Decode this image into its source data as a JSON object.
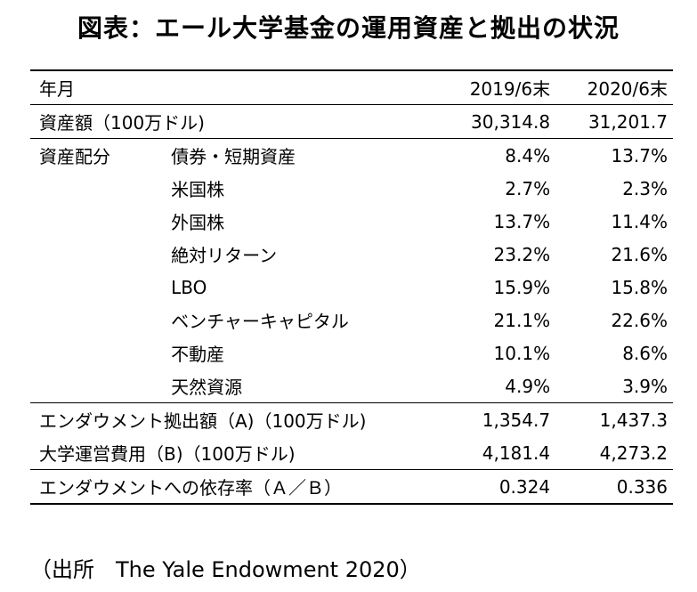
{
  "title": "図表：エール大学基金の運用資産と拠出の状況",
  "header": {
    "label": "年月",
    "col1": "2019/6末",
    "col2": "2020/6末"
  },
  "assets": {
    "label": "資産額（100万ドル)",
    "v1": "30,314.8",
    "v2": "31,201.7"
  },
  "allocation": {
    "label": "資産配分",
    "rows": [
      {
        "name": "債券・短期資産",
        "v1": "8.4%",
        "v2": "13.7%"
      },
      {
        "name": "米国株",
        "v1": "2.7%",
        "v2": "2.3%"
      },
      {
        "name": "外国株",
        "v1": "13.7%",
        "v2": "11.4%"
      },
      {
        "name": "絶対リターン",
        "v1": "23.2%",
        "v2": "21.6%"
      },
      {
        "name": "LBO",
        "v1": "15.9%",
        "v2": "15.8%"
      },
      {
        "name": "ベンチャーキャピタル",
        "v1": "21.1%",
        "v2": "22.6%"
      },
      {
        "name": "不動産",
        "v1": "10.1%",
        "v2": "8.6%"
      },
      {
        "name": "天然資源",
        "v1": "4.9%",
        "v2": "3.9%"
      }
    ]
  },
  "endowment": {
    "label": "エンダウメント拠出額（A)（100万ドル)",
    "v1": "1,354.7",
    "v2": "1,437.3"
  },
  "costs": {
    "label": "大学運営費用（B)（100万ドル)",
    "v1": "4,181.4",
    "v2": "4,273.2"
  },
  "ratio": {
    "label": "エンダウメントへの依存率（Ａ／Ｂ）",
    "v1": "0.324",
    "v2": "0.336"
  },
  "source": "（出所　The Yale Endowment 2020）"
}
